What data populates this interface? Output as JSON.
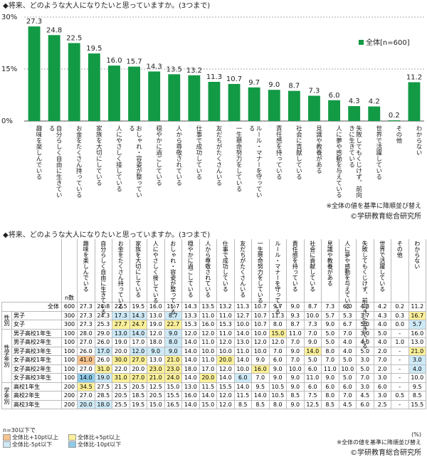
{
  "chart_data": {
    "type": "bar",
    "title": "◆将来、どのような大人になりたいと思っていますか。(3つまで)",
    "categories": [
      "趣味を楽しんでいる",
      "自分らしく自由に生きている",
      "お金をたくさん持っている",
      "家族を大切にしている",
      "人にやさしく接している",
      "おしゃれ・容姿が整っている",
      "穏やかに過ごしている",
      "人から尊敬されている",
      "仕事で成功している",
      "友だちがたくさんいる",
      "一生懸命努力をしている",
      "ルール・マナーを守っている",
      "責任感を持っている",
      "社会に貢献している",
      "見識や教養がある",
      "人に夢や感動を与えている",
      "失敗してもくじけず、前向きに生きている",
      "世界で活躍している",
      "その他",
      "わからない"
    ],
    "series": [
      {
        "name": "全体[n=600]",
        "color": "#129a45",
        "values": [
          27.3,
          24.8,
          22.5,
          19.5,
          16.0,
          15.7,
          14.3,
          13.5,
          13.2,
          11.3,
          10.7,
          9.7,
          9.0,
          8.7,
          7.3,
          6.0,
          4.3,
          4.2,
          0.2,
          11.2
        ],
        "value_labels": [
          "27.3",
          "24.8",
          "22.5",
          "19.5",
          "16.0",
          "15.7",
          "14.3",
          "13.5",
          "13.2",
          "11.3",
          "10.7",
          "9.7",
          "9.0",
          "8.7",
          "7.3",
          "6.0",
          "4.3",
          "4.2",
          "0.2",
          "11.2"
        ]
      }
    ],
    "ylim": [
      0,
      30
    ],
    "yticks": [
      {
        "value": 0,
        "label": "0%"
      },
      {
        "value": 15,
        "label": "15%"
      },
      {
        "value": 30,
        "label": "30%"
      }
    ],
    "grid": true,
    "legend": "top-right",
    "note": "※全体の値を基準に降順並び替え",
    "source": "©学研教育総合研究所"
  },
  "table": {
    "title": "◆将来、どのような大人になりたいと思っていますか。(3つまで)",
    "columns": [
      "趣味を楽しんでいる",
      "自分らしく自由に生きている",
      "お金をたくさん持っている",
      "家族を大切にしている",
      "人にやさしく接している",
      "おしゃれ・容姿が整っている",
      "穏やかに過ごしている",
      "人から尊敬されている",
      "仕事で成功している",
      "友だちがたくさんいる",
      "一生懸命努力をしている",
      "ルール・マナーを守っている",
      "責任感を持っている",
      "社会に貢献している",
      "見識や教養がある",
      "人に夢や感動を与えている",
      "失敗してもくじけず、前向きに生きている",
      "世界で活躍している",
      "その他",
      "わからない"
    ],
    "n_header": "n数",
    "total": {
      "label": "全体",
      "n": 600,
      "cells": [
        "27.3",
        "24.8",
        "22.5",
        "19.5",
        "16.0",
        "15.7",
        "14.3",
        "13.5",
        "13.2",
        "11.3",
        "10.7",
        "9.7",
        "9.0",
        "8.7",
        "7.3",
        "6.0",
        "4.3",
        "4.2",
        "0.2",
        "11.2"
      ]
    },
    "groups": [
      {
        "label": "性別",
        "rows": [
          {
            "label": "男子",
            "n": 300,
            "cells": [
              "27.3",
              "24.3",
              "17.3",
              "14.3",
              "13.0",
              "8.7",
              "13.3",
              "11.0",
              "11.0",
              "12.7",
              "10.7",
              "11.3",
              "9.3",
              "10.0",
              "5.7",
              "5.3",
              "3.7",
              "4.3",
              "0.3",
              "16.7"
            ]
          },
          {
            "label": "女子",
            "n": 300,
            "cells": [
              "27.3",
              "25.3",
              "27.7",
              "24.7",
              "19.0",
              "22.7",
              "15.3",
              "16.0",
              "15.3",
              "10.0",
              "10.7",
              "8.0",
              "8.7",
              "7.3",
              "9.0",
              "6.7",
              "5.0",
              "4.0",
              "0.0",
              "5.7"
            ]
          }
        ]
      },
      {
        "label": "性学年別",
        "rows": [
          {
            "label": "男子高校1年生",
            "n": 100,
            "cells": [
              "28.0",
              "29.0",
              "13.0",
              "14.0",
              "12.0",
              "9.0",
              "12.0",
              "12.0",
              "11.0",
              "14.0",
              "10.0",
              "15.0",
              "11.0",
              "7.0",
              "5.0",
              "7.0",
              "3.0",
              "5.0",
              "-",
              "16.0"
            ]
          },
          {
            "label": "男子高校2年生",
            "n": 100,
            "cells": [
              "27.0",
              "26.0",
              "19.0",
              "17.0",
              "18.0",
              "8.0",
              "14.0",
              "11.0",
              "12.0",
              "13.0",
              "12.0",
              "12.0",
              "7.0",
              "9.0",
              "5.0",
              "4.0",
              "4.0",
              "4.0",
              "1.0",
              "13.0"
            ]
          },
          {
            "label": "男子高校3年生",
            "n": 100,
            "cells": [
              "26.0",
              "17.0",
              "20.0",
              "12.0",
              "9.0",
              "9.0",
              "14.0",
              "10.0",
              "10.0",
              "11.0",
              "10.0",
              "7.0",
              "9.0",
              "14.0",
              "8.0",
              "4.0",
              "5.0",
              "2.0",
              "-",
              "21.0"
            ]
          },
          {
            "label": "女子高校1年生",
            "n": 100,
            "cells": [
              "41.0",
              "26.0",
              "30.0",
              "27.0",
              "13.0",
              "21.0",
              "14.0",
              "11.0",
              "20.0",
              "14.0",
              "9.0",
              "6.0",
              "7.0",
              "5.0",
              "7.0",
              "5.0",
              "3.0",
              "7.0",
              "-",
              "3.0"
            ]
          },
          {
            "label": "女子高校2年生",
            "n": 100,
            "cells": [
              "27.0",
              "31.0",
              "22.0",
              "20.0",
              "23.0",
              "23.0",
              "18.0",
              "17.0",
              "12.0",
              "10.0",
              "16.0",
              "9.0",
              "10.0",
              "6.0",
              "11.0",
              "10.0",
              "5.0",
              "2.0",
              "-",
              "4.0"
            ]
          },
          {
            "label": "女子高校3年生",
            "n": 100,
            "cells": [
              "14.0",
              "19.0",
              "31.0",
              "27.0",
              "21.0",
              "24.0",
              "14.0",
              "20.0",
              "14.0",
              "6.0",
              "7.0",
              "9.0",
              "9.0",
              "11.0",
              "9.0",
              "5.0",
              "7.0",
              "3.0",
              "-",
              "10.0"
            ]
          }
        ]
      },
      {
        "label": "学年別",
        "rows": [
          {
            "label": "高校1年生",
            "n": 200,
            "cells": [
              "34.5",
              "27.5",
              "21.5",
              "20.5",
              "12.5",
              "15.0",
              "13.0",
              "11.5",
              "15.5",
              "14.0",
              "9.5",
              "10.5",
              "9.0",
              "6.0",
              "6.0",
              "6.0",
              "3.0",
              "6.0",
              "-",
              "9.5"
            ]
          },
          {
            "label": "高校2年生",
            "n": 200,
            "cells": [
              "27.0",
              "28.5",
              "20.5",
              "18.5",
              "20.5",
              "15.5",
              "16.0",
              "14.0",
              "12.0",
              "11.5",
              "14.0",
              "10.5",
              "8.5",
              "7.5",
              "8.0",
              "7.0",
              "4.5",
              "3.0",
              "0.5",
              "8.5"
            ]
          },
          {
            "label": "高校3年生",
            "n": 200,
            "cells": [
              "20.0",
              "18.0",
              "25.5",
              "19.5",
              "15.0",
              "16.5",
              "14.0",
              "15.0",
              "12.0",
              "8.5",
              "8.5",
              "8.0",
              "9.0",
              "12.5",
              "8.5",
              "4.5",
              "6.0",
              "2.5",
              "-",
              "15.5"
            ]
          }
        ]
      }
    ],
    "footnote": "n=30以下で",
    "highlight_legend": [
      {
        "value": 10,
        "label": "全体比+10pt以上",
        "color": "#f7c38f"
      },
      {
        "value": 5,
        "label": "全体比+5pt以上",
        "color": "#fbf09a"
      },
      {
        "value": -5,
        "label": "全体比-5pt以下",
        "color": "#cde9f6"
      },
      {
        "value": -10,
        "label": "全体比-10pt以下",
        "color": "#8fcbe8"
      }
    ],
    "unit": "(%)",
    "note": "※全体の値を基準に降順並び替え",
    "source": "©学研教育総合研究所"
  }
}
